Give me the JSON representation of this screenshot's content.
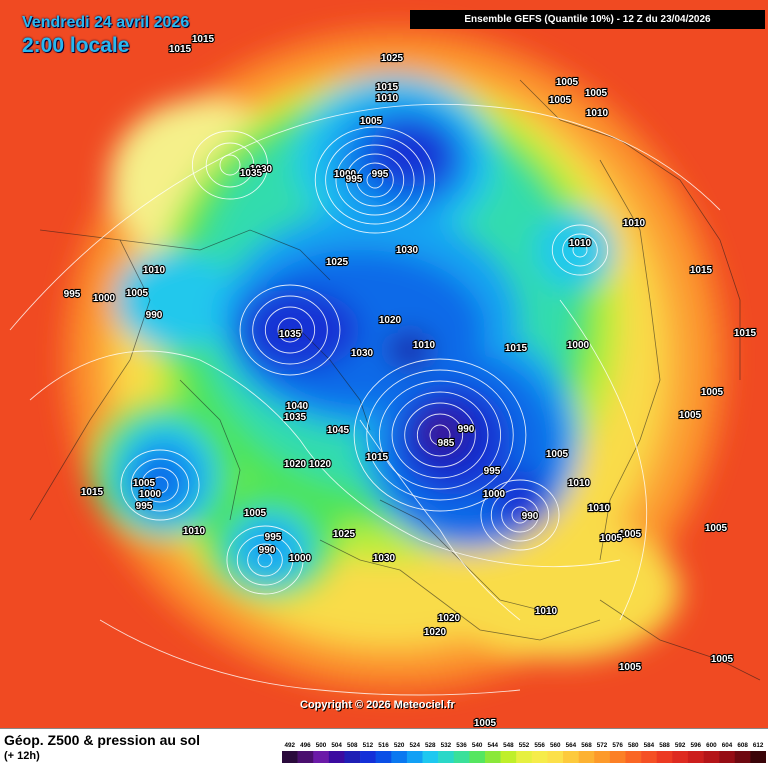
{
  "header": {
    "date_line": "Vendredi 24 avril 2026",
    "time_line": "2:00 locale",
    "model_title": "Ensemble GEFS  (Quantile 10%) - 12 Z du 23/04/2026"
  },
  "copyright": "Copyright © 2026 Meteociel.fr",
  "footer": {
    "title": "Géop. Z500 & pression au sol",
    "subtitle": "(+ 12h)"
  },
  "legend": {
    "values": [
      "492",
      "496",
      "500",
      "504",
      "508",
      "512",
      "516",
      "520",
      "524",
      "528",
      "532",
      "536",
      "540",
      "544",
      "548",
      "552",
      "556",
      "560",
      "564",
      "568",
      "572",
      "576",
      "580",
      "584",
      "588",
      "592",
      "596",
      "600",
      "604",
      "608",
      "612"
    ],
    "colors": [
      "#2a0a3c",
      "#4a0f6e",
      "#6b1aa8",
      "#3b0ba0",
      "#1f1fb5",
      "#1430d8",
      "#0a4fe6",
      "#0a78f0",
      "#12a0f5",
      "#1ec8f0",
      "#2ad8c8",
      "#3ae09a",
      "#55e660",
      "#8ae83a",
      "#bfef2a",
      "#e6f040",
      "#f6ec4a",
      "#fce04a",
      "#fdca3c",
      "#fdb232",
      "#fd9a2a",
      "#fc8026",
      "#fa6624",
      "#f55024",
      "#ec3a22",
      "#de2a20",
      "#cc1e1c",
      "#b41418",
      "#960c14",
      "#6e0810",
      "#3a0408"
    ]
  },
  "map": {
    "palette": {
      "red": "#f04a22",
      "orange_red": "#f56a28",
      "orange": "#fb8c2a",
      "light_orange": "#fcaa38",
      "yellow": "#f9dc48",
      "pale_yellow": "#f5f08a",
      "yellow_green": "#b8ee3a",
      "green": "#4ee45a",
      "cyan_green": "#30dcae",
      "cyan": "#22c8ec",
      "light_blue": "#12a2f2",
      "blue": "#0a6ae8",
      "deep_blue": "#1430d4",
      "navy": "#1a1aa8",
      "purple": "#4a128a"
    },
    "pressure_labels": [
      "1015",
      "1015",
      "1025",
      "1015",
      "1010",
      "1005",
      "1005",
      "1005",
      "1010",
      "1005",
      "1030",
      "1035",
      "1010",
      "1010",
      "1000",
      "995",
      "995",
      "1025",
      "1030",
      "1010",
      "995",
      "1000",
      "1005",
      "990",
      "1015",
      "1035",
      "1020",
      "1030",
      "1010",
      "1015",
      "1000",
      "1015",
      "1040",
      "1035",
      "990",
      "985",
      "1045",
      "1015",
      "1005",
      "995",
      "1020",
      "1020",
      "1005",
      "1005",
      "1000",
      "1010",
      "1005",
      "1000",
      "995",
      "1010",
      "1015",
      "1010",
      "1005",
      "1005",
      "990",
      "995",
      "1025",
      "1030",
      "1000",
      "990",
      "1005",
      "1005",
      "1020",
      "1010",
      "1005",
      "1020",
      "1005",
      "1005",
      "1005"
    ]
  }
}
